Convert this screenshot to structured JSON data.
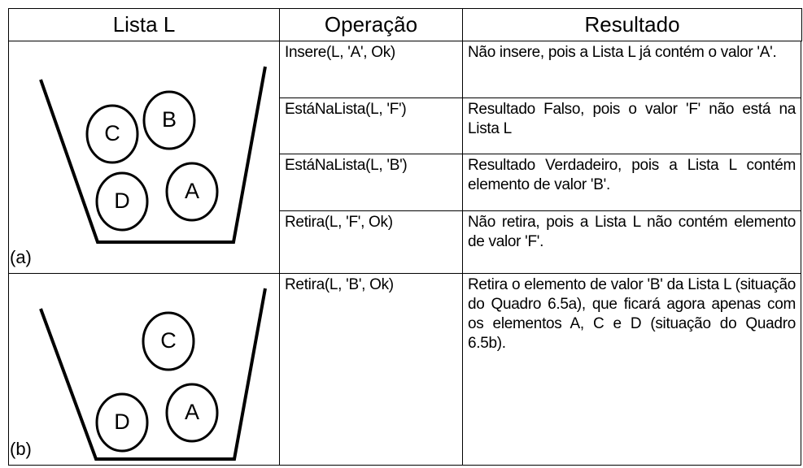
{
  "header": [
    "Lista L",
    "Operação",
    "Resultado"
  ],
  "situations": [
    {
      "label": "(a)",
      "elements": [
        "C",
        "B",
        "D",
        "A"
      ],
      "operations": [
        {
          "operation": "Insere(L, 'A', Ok)",
          "result": "Não insere, pois a Lista L já contém o valor 'A'."
        },
        {
          "operation": "EstáNaLista(L, 'F')",
          "result": "Resultado Falso, pois o valor 'F' não está na Lista L"
        },
        {
          "operation": "EstáNaLista(L, 'B')",
          "result": "Resultado Verdadeiro, pois a Lista L contém elemento de valor 'B'."
        },
        {
          "operation": "Retira(L, 'F', Ok)",
          "result": "Não retira, pois a Lista L não contém elemento de valor 'F'."
        }
      ]
    },
    {
      "label": "(b)",
      "elements": [
        "C",
        "D",
        "A"
      ],
      "operations": [
        {
          "operation": "Retira(L, 'B', Ok)",
          "result": "Retira o elemento de valor 'B' da Lista L (situação do Quadro 6.5a), que ficará agora apenas com os elementos A, C e D (situação do Quadro 6.5b)."
        }
      ]
    }
  ]
}
